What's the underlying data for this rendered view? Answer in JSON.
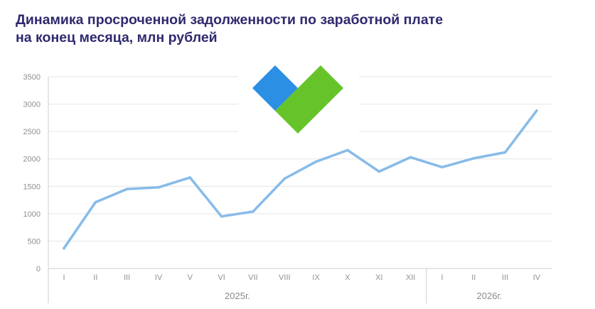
{
  "title": {
    "line1": "Динамика просроченной задолженности по заработной плате",
    "line2": "на конец месяца, млн рублей"
  },
  "logo": {
    "icon": "heart-logo",
    "colors": [
      "#2b8fe3",
      "#66c42a"
    ]
  },
  "colors": {
    "line": "#86bbe9",
    "grid": "#e6e6e6",
    "axis": "#cfcfcf",
    "text": "#8f8f8f",
    "title": "#2e2a6e"
  },
  "chart_data": {
    "type": "line",
    "title": "Динамика просроченной задолженности по заработной плате на конец месяца, млн рублей",
    "categories": [
      "I",
      "II",
      "III",
      "IV",
      "V",
      "VI",
      "VII",
      "VIII",
      "IX",
      "X",
      "XI",
      "XII",
      "I",
      "II",
      "III",
      "IV"
    ],
    "groups": [
      {
        "label": "2025г.",
        "count": 12
      },
      {
        "label": "2026г.",
        "count": 4
      }
    ],
    "series": [
      {
        "values": [
          370,
          1210,
          1450,
          1480,
          1660,
          950,
          1040,
          1640,
          1950,
          2160,
          1770,
          2030,
          1850,
          2010,
          2120,
          2880
        ]
      }
    ],
    "yticks": [
      0,
      500,
      1000,
      1500,
      2000,
      2500,
      3000,
      3500
    ],
    "ylim": [
      0,
      3500
    ],
    "grid": true
  }
}
